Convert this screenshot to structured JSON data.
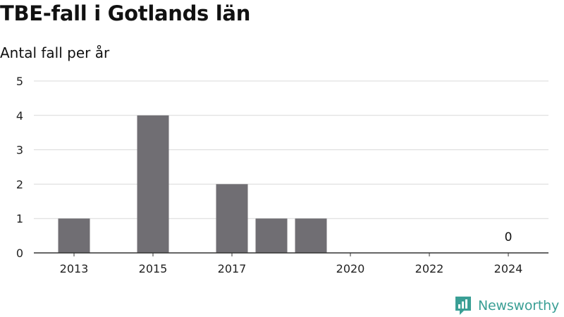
{
  "title": "TBE-fall i Gotlands län",
  "subtitle": "Antal fall per år",
  "brand": {
    "name": "Newsworthy",
    "color": "#3a9f95"
  },
  "colors": {
    "bar": "#706e73",
    "grid": "#d9d9d9",
    "axis": "#333333"
  },
  "chart_data": {
    "type": "bar",
    "title": "TBE-fall i Gotlands län",
    "subtitle": "Antal fall per år",
    "xlabel": "",
    "ylabel": "",
    "categories": [
      "2013",
      "2014",
      "2015",
      "2016",
      "2017",
      "2018",
      "2019",
      "2020",
      "2021",
      "2022",
      "2023",
      "2024"
    ],
    "values": [
      1,
      0,
      4,
      0,
      2,
      1,
      1,
      0,
      0,
      0,
      0,
      0
    ],
    "x_tick_labels": [
      "2013",
      "2015",
      "2017",
      "2020",
      "2022",
      "2024"
    ],
    "y_ticks": [
      0,
      1,
      2,
      3,
      4,
      5
    ],
    "ylim": [
      0,
      5
    ],
    "grid": true,
    "annotations": [
      {
        "category": "2024",
        "text": "0"
      }
    ]
  }
}
